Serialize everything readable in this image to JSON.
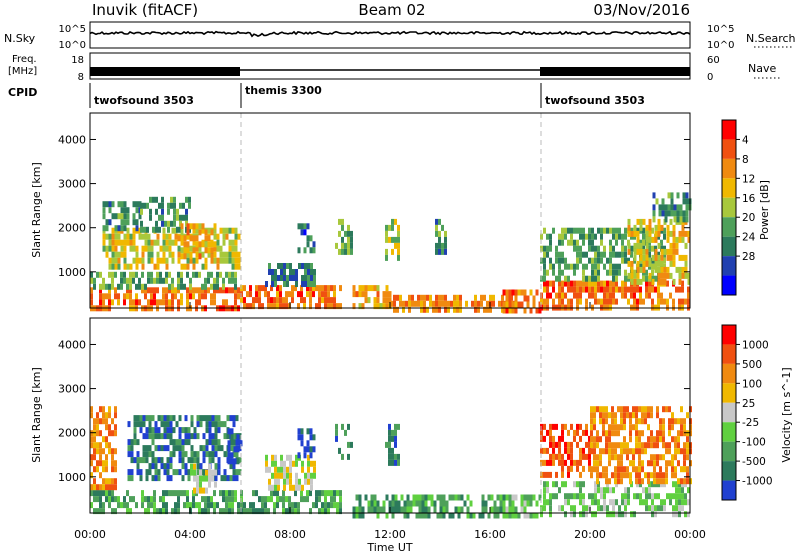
{
  "header": {
    "station": "Inuvik (fitACF)",
    "beam": "Beam 02",
    "date": "03/Nov/2016"
  },
  "strip_nsky": {
    "left_label": "N.Sky",
    "left_ticks": [
      "10^5",
      "10^0"
    ],
    "right_label": "N.Search",
    "right_ticks": [
      "10^5",
      "10^0"
    ]
  },
  "strip_freq": {
    "left_label_1": "Freq.",
    "left_label_2": "[MHz]",
    "left_ticks": [
      "18",
      "8"
    ],
    "right_label": "Nave",
    "right_ticks": [
      "60",
      "0"
    ]
  },
  "cpid": {
    "label": "CPID",
    "segments": [
      {
        "name": "twofsound 3503",
        "start_h": 0,
        "end_h": 6
      },
      {
        "name": "themis 3300",
        "start_h": 6,
        "end_h": 18
      },
      {
        "name": "twofsound 3503",
        "start_h": 18,
        "end_h": 24
      }
    ]
  },
  "time_axis": {
    "label": "Time UT",
    "ticks": [
      "00:00",
      "04:00",
      "08:00",
      "12:00",
      "16:00",
      "20:00",
      "00:00"
    ]
  },
  "chart_data": [
    {
      "type": "heatmap",
      "name": "power",
      "xlabel": "Time UT",
      "ylabel": "Slant Range [km]",
      "xlim": [
        0,
        24
      ],
      "ylim": [
        180,
        4600
      ],
      "yticks": [
        1000,
        2000,
        3000,
        4000
      ],
      "colorbar": {
        "label": "Power [dB]",
        "levels": [
          0,
          4,
          8,
          12,
          16,
          20,
          24,
          28,
          32
        ],
        "ticks": [
          "4",
          "8",
          "12",
          "16",
          "20",
          "24",
          "28"
        ],
        "colors": [
          "#0000ff",
          "#2040b0",
          "#2c7a5c",
          "#4ea05a",
          "#a8c83c",
          "#f0b800",
          "#f08a10",
          "#f05010",
          "#ff0000"
        ]
      },
      "regions": [
        {
          "t0": 0.0,
          "t1": 6.0,
          "r0": 180,
          "r1": 650,
          "v": 28
        },
        {
          "t0": 0.0,
          "t1": 6.0,
          "r0": 650,
          "r1": 1000,
          "v": 14
        },
        {
          "t0": 0.5,
          "t1": 6.0,
          "r0": 1100,
          "r1": 2000,
          "v": 20
        },
        {
          "t0": 0.5,
          "t1": 2.0,
          "r0": 2000,
          "r1": 2600,
          "v": 12
        },
        {
          "t0": 2.0,
          "t1": 4.0,
          "r0": 2000,
          "r1": 2700,
          "v": 12
        },
        {
          "t0": 3.5,
          "t1": 5.0,
          "r0": 1400,
          "r1": 2100,
          "v": 24
        },
        {
          "t0": 6.0,
          "t1": 10.0,
          "r0": 180,
          "r1": 700,
          "v": 28
        },
        {
          "t0": 7.0,
          "t1": 9.0,
          "r0": 700,
          "r1": 1200,
          "v": 10
        },
        {
          "t0": 8.3,
          "t1": 9.0,
          "r0": 1500,
          "r1": 2100,
          "v": 8
        },
        {
          "t0": 9.8,
          "t1": 10.5,
          "r0": 1500,
          "r1": 2200,
          "v": 14
        },
        {
          "t0": 10.5,
          "t1": 12.0,
          "r0": 200,
          "r1": 700,
          "v": 24
        },
        {
          "t0": 11.8,
          "t1": 12.3,
          "r0": 1300,
          "r1": 2200,
          "v": 18
        },
        {
          "t0": 12.0,
          "t1": 17.0,
          "r0": 180,
          "r1": 480,
          "v": 26
        },
        {
          "t0": 13.8,
          "t1": 14.2,
          "r0": 1400,
          "r1": 2200,
          "v": 12
        },
        {
          "t0": 16.5,
          "t1": 18.0,
          "r0": 180,
          "r1": 600,
          "v": 28
        },
        {
          "t0": 18.0,
          "t1": 24.0,
          "r0": 180,
          "r1": 800,
          "v": 28
        },
        {
          "t0": 18.0,
          "t1": 23.0,
          "r0": 800,
          "r1": 2000,
          "v": 14
        },
        {
          "t0": 21.5,
          "t1": 24.0,
          "r0": 800,
          "r1": 2200,
          "v": 22
        },
        {
          "t0": 22.5,
          "t1": 24.0,
          "r0": 2200,
          "r1": 2800,
          "v": 12
        }
      ]
    },
    {
      "type": "heatmap",
      "name": "velocity",
      "xlabel": "Time UT",
      "ylabel": "Slant Range [km]",
      "xlim": [
        0,
        24
      ],
      "ylim": [
        180,
        4600
      ],
      "yticks": [
        1000,
        2000,
        3000,
        4000
      ],
      "colorbar": {
        "label": "Velocity [m s^-1]",
        "ticks": [
          "1000",
          "500",
          "100",
          "25",
          "-25",
          "-100",
          "-500",
          "-1000"
        ],
        "colors": [
          "#2040d0",
          "#2c7a5c",
          "#4ea05a",
          "#60d040",
          "#c8c8c8",
          "#f0b800",
          "#f08a10",
          "#f05010",
          "#ff0000"
        ]
      },
      "regions": [
        {
          "t0": 0.0,
          "t1": 6.0,
          "r0": 180,
          "r1": 700,
          "v": 2
        },
        {
          "t0": 0.0,
          "t1": 1.0,
          "r0": 700,
          "r1": 2600,
          "v": 6
        },
        {
          "t0": 1.5,
          "t1": 6.0,
          "r0": 1000,
          "r1": 2400,
          "v": 1
        },
        {
          "t0": 4.0,
          "t1": 5.0,
          "r0": 700,
          "r1": 1300,
          "v": 4
        },
        {
          "t0": 5.5,
          "t1": 6.0,
          "r0": 1300,
          "r1": 2100,
          "v": 0
        },
        {
          "t0": 6.0,
          "t1": 10.0,
          "r0": 180,
          "r1": 700,
          "v": 2
        },
        {
          "t0": 7.0,
          "t1": 9.0,
          "r0": 700,
          "r1": 1500,
          "v": 4
        },
        {
          "t0": 8.3,
          "t1": 9.0,
          "r0": 1500,
          "r1": 2100,
          "v": 0
        },
        {
          "t0": 9.8,
          "t1": 10.5,
          "r0": 1500,
          "r1": 2200,
          "v": 1
        },
        {
          "t0": 10.5,
          "t1": 17.0,
          "r0": 180,
          "r1": 600,
          "v": 2
        },
        {
          "t0": 11.8,
          "t1": 12.3,
          "r0": 1300,
          "r1": 2200,
          "v": 1
        },
        {
          "t0": 16.5,
          "t1": 18.0,
          "r0": 180,
          "r1": 600,
          "v": 3
        },
        {
          "t0": 18.0,
          "t1": 24.0,
          "r0": 180,
          "r1": 900,
          "v": 3
        },
        {
          "t0": 18.0,
          "t1": 20.0,
          "r0": 1000,
          "r1": 2200,
          "v": 7
        },
        {
          "t0": 20.0,
          "t1": 24.0,
          "r0": 900,
          "r1": 2600,
          "v": 6
        }
      ]
    }
  ]
}
